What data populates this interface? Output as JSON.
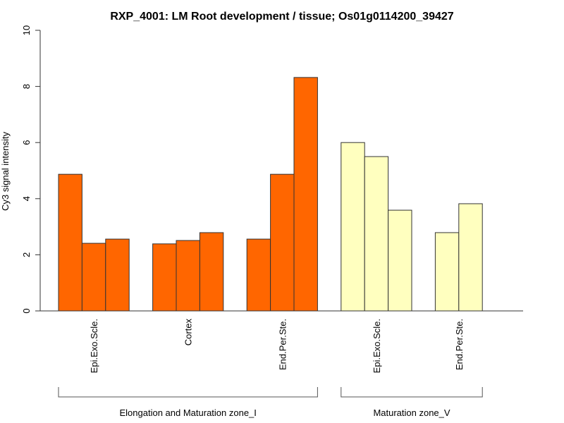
{
  "chart_data": {
    "type": "bar",
    "title": "RXP_4001: LM Root development / tissue; Os01g0114200_39427",
    "xlabel": "",
    "ylabel": "Cy3 signal intensity",
    "ylim": [
      0,
      10
    ],
    "yticks": [
      0,
      2,
      4,
      6,
      8,
      10
    ],
    "colors": {
      "zone_I": "#FF6600",
      "zone_V": "#FFFFBF",
      "border": "#333333"
    },
    "groups": [
      {
        "name": "Elongation and Maturation zone_I",
        "color_key": "zone_I",
        "tissues": [
          {
            "label": "Epi.Exo.Scle.",
            "values": [
              4.87,
              2.41,
              2.56
            ]
          },
          {
            "label": "Cortex",
            "values": [
              2.39,
              2.51,
              2.79
            ]
          },
          {
            "label": "End.Per.Ste.",
            "values": [
              2.56,
              4.87,
              8.32
            ]
          }
        ]
      },
      {
        "name": "Maturation zone_V",
        "color_key": "zone_V",
        "tissues": [
          {
            "label": "Epi.Exo.Scle.",
            "values": [
              6.0,
              5.5,
              3.59
            ]
          },
          {
            "label": "End.Per.Ste.",
            "values": [
              2.79,
              3.82
            ]
          }
        ]
      }
    ]
  }
}
